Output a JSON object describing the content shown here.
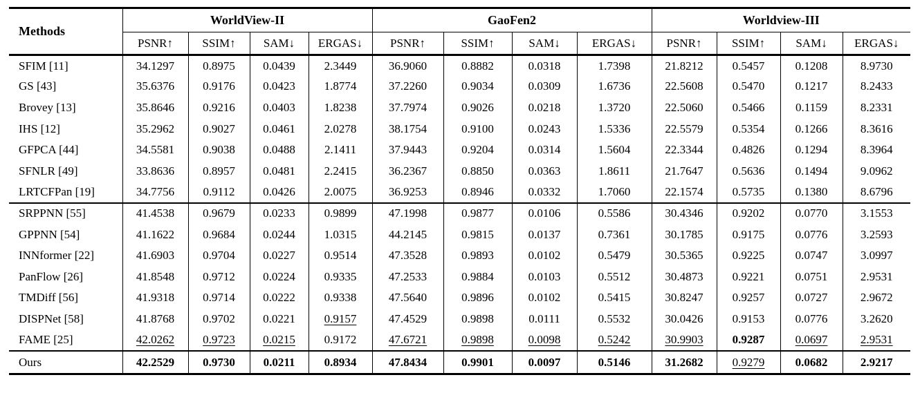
{
  "colors": {
    "text": "#000000",
    "background": "#ffffff",
    "rule": "#000000"
  },
  "emphasis_legend": {
    "best": "bold",
    "second_best": "underline"
  },
  "table": {
    "methods_header": "Methods",
    "groups": [
      {
        "label": "WorldView-II"
      },
      {
        "label": "GaoFen2"
      },
      {
        "label": "Worldview-III"
      }
    ],
    "metric_headers": [
      "PSNR↑",
      "SSIM↑",
      "SAM↓",
      "ERGAS↓"
    ],
    "sections": [
      {
        "name": "classical-methods",
        "rows": [
          {
            "method": "SFIM [11]",
            "values": [
              "34.1297",
              "0.8975",
              "0.0439",
              "2.3449",
              "36.9060",
              "0.8882",
              "0.0318",
              "1.7398",
              "21.8212",
              "0.5457",
              "0.1208",
              "8.9730"
            ]
          },
          {
            "method": "GS [43]",
            "values": [
              "35.6376",
              "0.9176",
              "0.0423",
              "1.8774",
              "37.2260",
              "0.9034",
              "0.0309",
              "1.6736",
              "22.5608",
              "0.5470",
              "0.1217",
              "8.2433"
            ]
          },
          {
            "method": "Brovey [13]",
            "values": [
              "35.8646",
              "0.9216",
              "0.0403",
              "1.8238",
              "37.7974",
              "0.9026",
              "0.0218",
              "1.3720",
              "22.5060",
              "0.5466",
              "0.1159",
              "8.2331"
            ]
          },
          {
            "method": "IHS [12]",
            "values": [
              "35.2962",
              "0.9027",
              "0.0461",
              "2.0278",
              "38.1754",
              "0.9100",
              "0.0243",
              "1.5336",
              "22.5579",
              "0.5354",
              "0.1266",
              "8.3616"
            ]
          },
          {
            "method": "GFPCA [44]",
            "values": [
              "34.5581",
              "0.9038",
              "0.0488",
              "2.1411",
              "37.9443",
              "0.9204",
              "0.0314",
              "1.5604",
              "22.3344",
              "0.4826",
              "0.1294",
              "8.3964"
            ]
          },
          {
            "method": "SFNLR [49]",
            "values": [
              "33.8636",
              "0.8957",
              "0.0481",
              "2.2415",
              "36.2367",
              "0.8850",
              "0.0363",
              "1.8611",
              "21.7647",
              "0.5636",
              "0.1494",
              "9.0962"
            ]
          },
          {
            "method": "LRTCFPan [19]",
            "values": [
              "34.7756",
              "0.9112",
              "0.0426",
              "2.0075",
              "36.9253",
              "0.8946",
              "0.0332",
              "1.7060",
              "22.1574",
              "0.5735",
              "0.1380",
              "8.6796"
            ]
          }
        ]
      },
      {
        "name": "deep-learning-methods",
        "rows": [
          {
            "method": "SRPPNN [55]",
            "values": [
              "41.4538",
              "0.9679",
              "0.0233",
              "0.9899",
              "47.1998",
              "0.9877",
              "0.0106",
              "0.5586",
              "30.4346",
              "0.9202",
              "0.0770",
              "3.1553"
            ]
          },
          {
            "method": "GPPNN [54]",
            "values": [
              "41.1622",
              "0.9684",
              "0.0244",
              "1.0315",
              "44.2145",
              "0.9815",
              "0.0137",
              "0.7361",
              "30.1785",
              "0.9175",
              "0.0776",
              "3.2593"
            ]
          },
          {
            "method": "INNformer [22]",
            "values": [
              "41.6903",
              "0.9704",
              "0.0227",
              "0.9514",
              "47.3528",
              "0.9893",
              "0.0102",
              "0.5479",
              "30.5365",
              "0.9225",
              "0.0747",
              "3.0997"
            ]
          },
          {
            "method": "PanFlow [26]",
            "values": [
              "41.8548",
              "0.9712",
              "0.0224",
              "0.9335",
              "47.2533",
              "0.9884",
              "0.0103",
              "0.5512",
              "30.4873",
              "0.9221",
              "0.0751",
              "2.9531"
            ]
          },
          {
            "method": "TMDiff [56]",
            "values": [
              "41.9318",
              "0.9714",
              "0.0222",
              "0.9338",
              "47.5640",
              "0.9896",
              "0.0102",
              "0.5415",
              "30.8247",
              "0.9257",
              "0.0727",
              "2.9672"
            ]
          },
          {
            "method": "DISPNet [58]",
            "values": [
              "41.8768",
              "0.9702",
              "0.0221",
              "0.9157",
              "47.4529",
              "0.9898",
              "0.0111",
              "0.5532",
              "30.0426",
              "0.9153",
              "0.0776",
              "3.2620"
            ],
            "styles": [
              "n",
              "n",
              "n",
              "u",
              "n",
              "n",
              "n",
              "n",
              "n",
              "n",
              "n",
              "n"
            ]
          },
          {
            "method": "FAME [25]",
            "values": [
              "42.0262",
              "0.9723",
              "0.0215",
              "0.9172",
              "47.6721",
              "0.9898",
              "0.0098",
              "0.5242",
              "30.9903",
              "0.9287",
              "0.0697",
              "2.9531"
            ],
            "styles": [
              "u",
              "u",
              "u",
              "n",
              "u",
              "u",
              "u",
              "u",
              "u",
              "b",
              "u",
              "u"
            ]
          }
        ]
      },
      {
        "name": "ours",
        "rows": [
          {
            "method": "Ours",
            "values": [
              "42.2529",
              "0.9730",
              "0.0211",
              "0.8934",
              "47.8434",
              "0.9901",
              "0.0097",
              "0.5146",
              "31.2682",
              "0.9279",
              "0.0682",
              "2.9217"
            ],
            "styles": [
              "b",
              "b",
              "b",
              "b",
              "b",
              "b",
              "b",
              "b",
              "b",
              "u",
              "b",
              "b"
            ]
          }
        ]
      }
    ]
  }
}
